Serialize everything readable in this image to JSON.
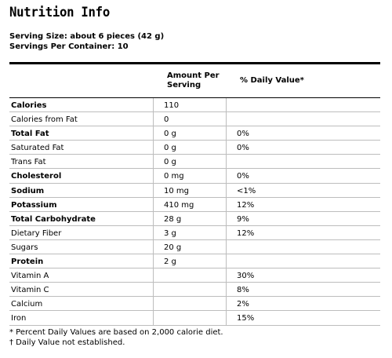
{
  "title": "Nutrition Info",
  "serving_size": "Serving Size: about 6 pieces (42 g)",
  "servings_per_container": "Servings Per Container: 10",
  "header": {
    "amount": "Amount Per Serving",
    "daily_value": "% Daily Value*"
  },
  "rows": [
    {
      "name": "Calories",
      "amount": "110",
      "dv": "",
      "bold": true
    },
    {
      "name": "Calories from Fat",
      "amount": "0",
      "dv": "",
      "bold": false
    },
    {
      "name": "Total Fat",
      "amount": "0 g",
      "dv": "0%",
      "bold": true
    },
    {
      "name": "Saturated Fat",
      "amount": "0 g",
      "dv": "0%",
      "bold": false
    },
    {
      "name": "Trans Fat",
      "amount": "0 g",
      "dv": "",
      "bold": false
    },
    {
      "name": "Cholesterol",
      "amount": "0 mg",
      "dv": "0%",
      "bold": true
    },
    {
      "name": "Sodium",
      "amount": "10 mg",
      "dv": "<1%",
      "bold": true
    },
    {
      "name": "Potassium",
      "amount": "410 mg",
      "dv": "12%",
      "bold": true
    },
    {
      "name": "Total Carbohydrate",
      "amount": "28 g",
      "dv": "9%",
      "bold": true
    },
    {
      "name": "Dietary Fiber",
      "amount": "3 g",
      "dv": "12%",
      "bold": false
    },
    {
      "name": "Sugars",
      "amount": "20 g",
      "dv": "",
      "bold": false
    },
    {
      "name": "Protein",
      "amount": "2 g",
      "dv": "",
      "bold": true
    },
    {
      "name": "Vitamin A",
      "amount": "",
      "dv": "30%",
      "bold": false
    },
    {
      "name": "Vitamin C",
      "amount": "",
      "dv": "8%",
      "bold": false
    },
    {
      "name": "Calcium",
      "amount": "",
      "dv": "2%",
      "bold": false
    },
    {
      "name": "Iron",
      "amount": "",
      "dv": "15%",
      "bold": false
    }
  ],
  "footnotes": [
    "* Percent Daily Values are based on 2,000 calorie diet.",
    "† Daily Value not established."
  ]
}
